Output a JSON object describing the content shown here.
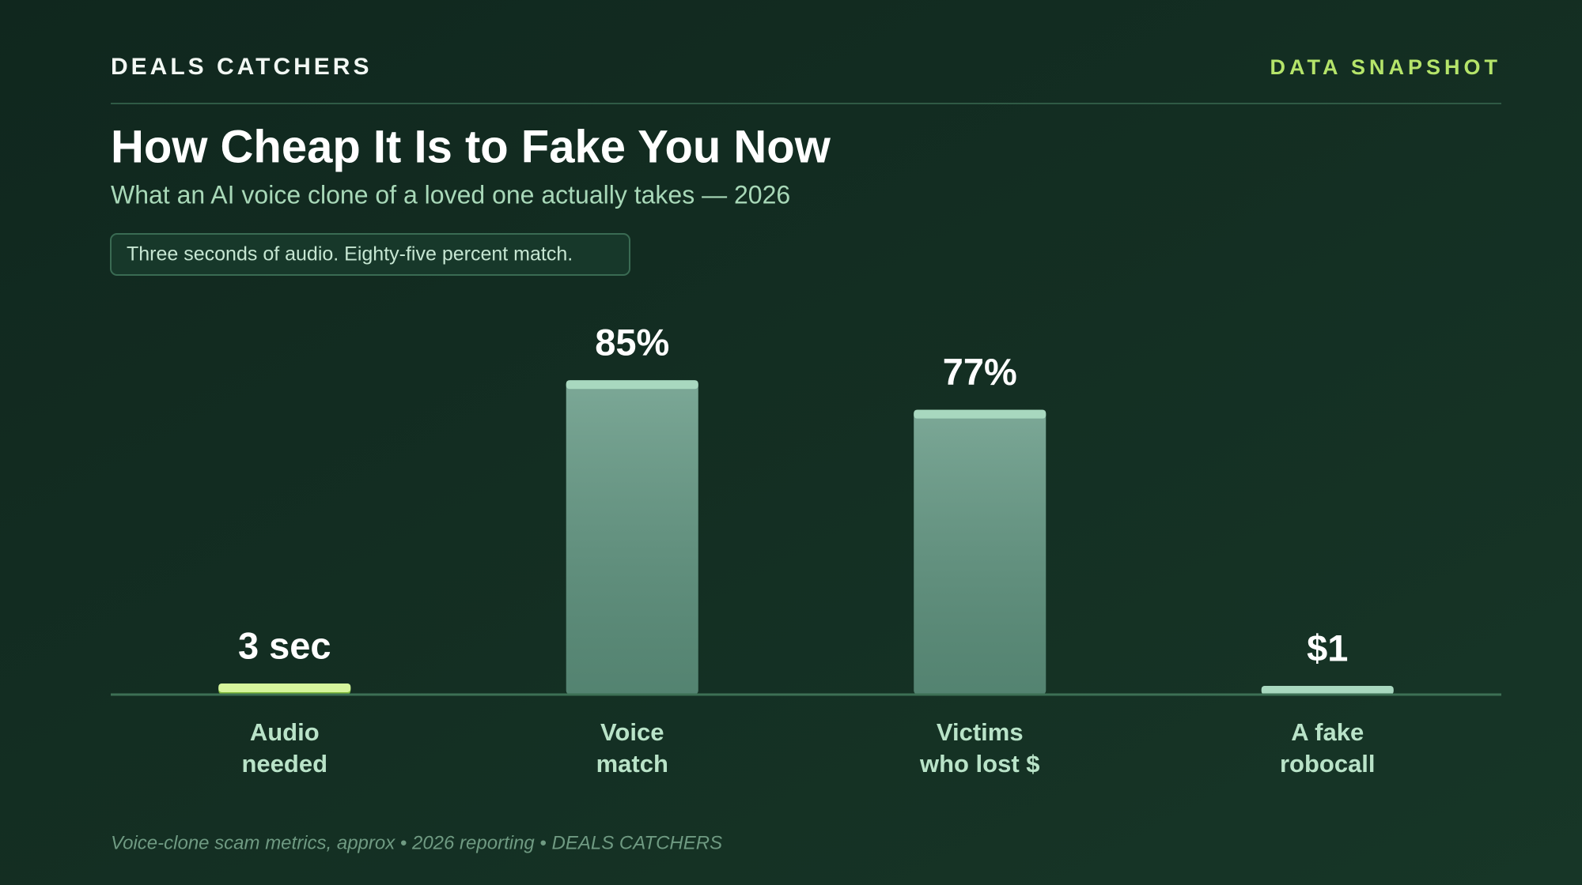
{
  "header": {
    "brand": "DEALS CATCHERS",
    "tag": "DATA SNAPSHOT"
  },
  "chart_data": {
    "type": "bar",
    "title": "How Cheap It Is to Fake You Now",
    "subtitle": "What an AI voice clone of a loved one actually takes — 2026",
    "annotation": "Three seconds of audio. Eighty-five percent match.",
    "categories": [
      "Audio\nneeded",
      "Voice\nmatch",
      "Victims\nwho lost $",
      "A fake\nrobocall"
    ],
    "values": [
      3,
      85,
      77,
      1
    ],
    "value_labels": [
      "3 sec",
      "85%",
      "77%",
      "$1"
    ],
    "colors": [
      "#8fd13f",
      "#5f9580",
      "#5f9580",
      "#5f9580"
    ],
    "ylim": [
      0,
      100
    ]
  },
  "footer": "Voice-clone scam metrics, approx • 2026 reporting • DEALS CATCHERS"
}
